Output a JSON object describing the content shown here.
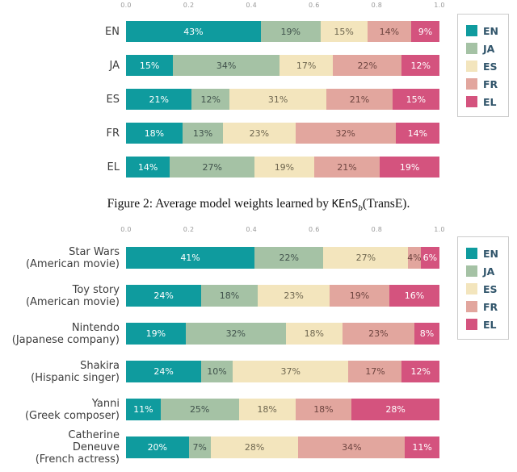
{
  "caption": {
    "prefix": "Figure 2: Average model weights learned by ",
    "code": "KEnS",
    "sub": "b",
    "suffix": "(TransE)."
  },
  "axis_ticks": [
    "0.0",
    "0.2",
    "0.4",
    "0.6",
    "0.8",
    "1.0"
  ],
  "legend": {
    "labels": [
      "EN",
      "JA",
      "ES",
      "FR",
      "EL"
    ],
    "position": "right"
  },
  "colors": {
    "EN": "#0f9b9e",
    "JA": "#a5c2a5",
    "ES": "#f3e5bd",
    "FR": "#e2a69e",
    "EL": "#d4537e"
  },
  "text_colors": {
    "EN": "#ffffff",
    "JA": "#41524c",
    "ES": "#6f6750",
    "FR": "#6e4540",
    "EL": "#ffffff"
  },
  "chart_data": [
    {
      "type": "bar",
      "stacked": true,
      "orientation": "horizontal",
      "unit": "percent",
      "xlim": [
        0,
        1
      ],
      "x_ticks": [
        0.0,
        0.2,
        0.4,
        0.6,
        0.8,
        1.0
      ],
      "grid": false,
      "legend_position": "right",
      "title": "",
      "categories": [
        "EN",
        "JA",
        "ES",
        "FR",
        "EL"
      ],
      "series": [
        {
          "name": "EN",
          "values": [
            43,
            15,
            21,
            18,
            14
          ]
        },
        {
          "name": "JA",
          "values": [
            19,
            34,
            12,
            13,
            27
          ]
        },
        {
          "name": "ES",
          "values": [
            15,
            17,
            31,
            23,
            19
          ]
        },
        {
          "name": "FR",
          "values": [
            14,
            22,
            21,
            32,
            21
          ]
        },
        {
          "name": "EL",
          "values": [
            9,
            12,
            15,
            14,
            19
          ]
        }
      ]
    },
    {
      "type": "bar",
      "stacked": true,
      "orientation": "horizontal",
      "unit": "percent",
      "xlim": [
        0,
        1
      ],
      "x_ticks": [
        0.0,
        0.2,
        0.4,
        0.6,
        0.8,
        1.0
      ],
      "grid": false,
      "legend_position": "right",
      "title": "",
      "categories": [
        "Star Wars\n(American movie)",
        "Toy story\n(American movie)",
        "Nintendo\n(Japanese company)",
        "Shakira\n(Hispanic singer)",
        "Yanni\n(Greek composer)",
        "Catherine\nDeneuve\n(French actress)"
      ],
      "series": [
        {
          "name": "EN",
          "values": [
            41,
            24,
            19,
            24,
            11,
            20
          ]
        },
        {
          "name": "JA",
          "values": [
            22,
            18,
            32,
            10,
            25,
            7
          ]
        },
        {
          "name": "ES",
          "values": [
            27,
            23,
            18,
            37,
            18,
            28
          ]
        },
        {
          "name": "FR",
          "values": [
            4,
            19,
            23,
            17,
            18,
            34
          ]
        },
        {
          "name": "EL",
          "values": [
            6,
            16,
            8,
            12,
            28,
            11
          ]
        }
      ]
    }
  ]
}
